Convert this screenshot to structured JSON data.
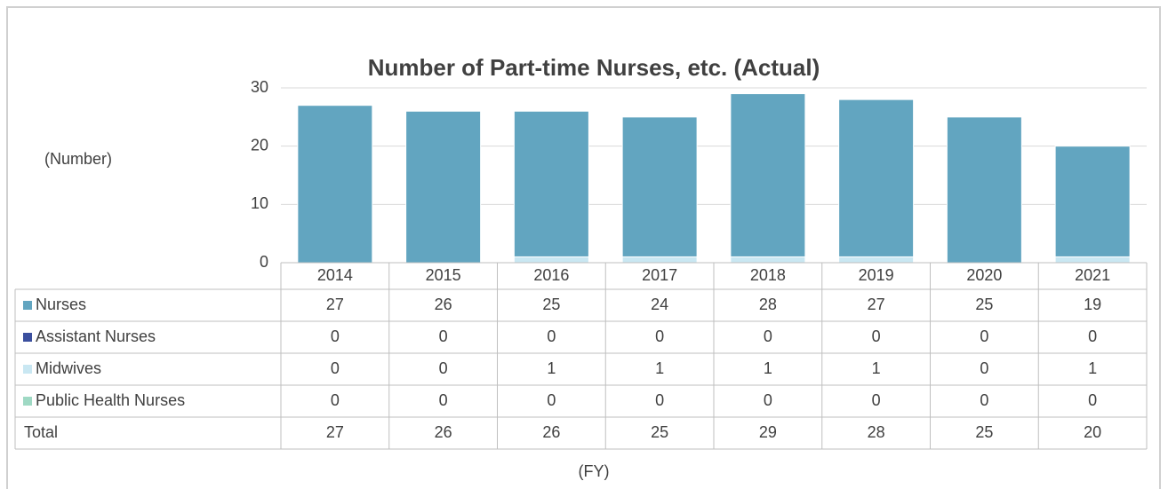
{
  "chart_data": {
    "type": "bar",
    "stacked": true,
    "title": "Number of Part-time Nurses, etc. (Actual)",
    "y_label": "(Number)",
    "x_label": "(FY)",
    "categories": [
      "2014",
      "2015",
      "2016",
      "2017",
      "2018",
      "2019",
      "2020",
      "2021"
    ],
    "series": [
      {
        "name": "Nurses",
        "color": "#62a5c0",
        "values": [
          27,
          26,
          25,
          24,
          28,
          27,
          25,
          19
        ]
      },
      {
        "name": "Assistant Nurses",
        "color": "#3b4f9e",
        "values": [
          0,
          0,
          0,
          0,
          0,
          0,
          0,
          0
        ]
      },
      {
        "name": "Midwives",
        "color": "#c9e7f2",
        "values": [
          0,
          0,
          1,
          1,
          1,
          1,
          0,
          1
        ]
      },
      {
        "name": "Public Health Nurses",
        "color": "#9fd9c4",
        "values": [
          0,
          0,
          0,
          0,
          0,
          0,
          0,
          0
        ]
      }
    ],
    "total": {
      "name": "Total",
      "values": [
        27,
        26,
        26,
        25,
        29,
        28,
        25,
        20
      ]
    },
    "ylim": [
      0,
      30
    ],
    "yticks": [
      0,
      10,
      20,
      30
    ],
    "grid": true
  }
}
